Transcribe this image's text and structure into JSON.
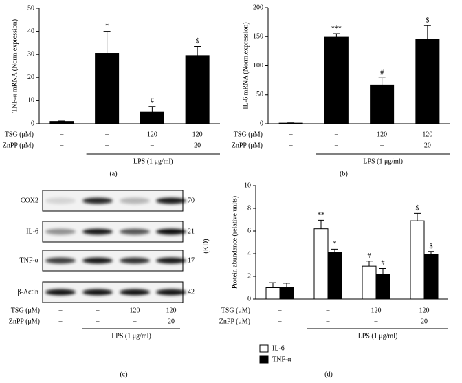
{
  "chart_data": [
    {
      "type": "bar",
      "panel_label": "(a)",
      "ylabel": "TNF-α mRNA (Norm.expression)",
      "ylim": [
        0,
        50
      ],
      "yticks": [
        0,
        10,
        20,
        30,
        40,
        50
      ],
      "series": [
        {
          "color": "#000000",
          "values": [
            1,
            30.5,
            5,
            29.5
          ],
          "errors": [
            0.2,
            9.5,
            2.5,
            4
          ],
          "annotations": [
            null,
            "*",
            "#",
            "$"
          ]
        }
      ],
      "conditions": [
        {
          "name": "TSG (μM)",
          "values": [
            "–",
            "–",
            "120",
            "120"
          ]
        },
        {
          "name": "ZnPP (μM)",
          "values": [
            "–",
            "–",
            "–",
            "20"
          ]
        }
      ],
      "group_label": "LPS (1 μg/ml)"
    },
    {
      "type": "bar",
      "panel_label": "(b)",
      "ylabel": "IL-6 mRNA (Norm.expression)",
      "ylim": [
        0,
        200
      ],
      "yticks": [
        0,
        50,
        100,
        150,
        200
      ],
      "series": [
        {
          "color": "#000000",
          "values": [
            1,
            149,
            67,
            146
          ],
          "errors": [
            0.5,
            6,
            12,
            23
          ],
          "annotations": [
            null,
            "***",
            "#",
            "$"
          ]
        }
      ],
      "conditions": [
        {
          "name": "TSG (μM)",
          "values": [
            "–",
            "–",
            "120",
            "120"
          ]
        },
        {
          "name": "ZnPP (μM)",
          "values": [
            "–",
            "–",
            "–",
            "20"
          ]
        }
      ],
      "group_label": "LPS (1 μg/ml)"
    },
    {
      "type": "bar",
      "panel_label": "(d)",
      "ylabel": "Protein abundance (relative units)",
      "ylim": [
        0,
        10
      ],
      "yticks": [
        0,
        2,
        4,
        6,
        8,
        10
      ],
      "series": [
        {
          "name": "IL-6",
          "color": "#ffffff",
          "values": [
            1,
            6.2,
            2.9,
            6.9
          ],
          "errors": [
            0.45,
            0.75,
            0.45,
            0.65
          ],
          "annotations": [
            null,
            "**",
            "#",
            "$"
          ]
        },
        {
          "name": "TNF-α",
          "color": "#000000",
          "values": [
            1,
            4.1,
            2.2,
            3.95
          ],
          "errors": [
            0.4,
            0.3,
            0.5,
            0.25
          ],
          "annotations": [
            null,
            "*",
            "#",
            "$"
          ]
        }
      ],
      "conditions": [
        {
          "name": "TSG (μM)",
          "values": [
            "–",
            "–",
            "120",
            "120"
          ]
        },
        {
          "name": "ZnPP (μM)",
          "values": [
            "–",
            "–",
            "–",
            "20"
          ]
        }
      ],
      "group_label": "LPS (1 μg/ml)",
      "legend": "bottom-left"
    }
  ],
  "blot": {
    "panel_label": "(c)",
    "kd_label": "(KD)",
    "proteins": [
      {
        "name": "COX2",
        "kd": 70
      },
      {
        "name": "IL-6",
        "kd": 21
      },
      {
        "name": "TNF-α",
        "kd": 17
      },
      {
        "name": "β-Actin",
        "kd": 42
      }
    ],
    "conditions": [
      {
        "name": "TSG (μM)",
        "values": [
          "–",
          "–",
          "120",
          "120"
        ]
      },
      {
        "name": "ZnPP (μM)",
        "values": [
          "–",
          "–",
          "–",
          "20"
        ]
      }
    ],
    "group_label": "LPS (1 μg/ml)"
  }
}
